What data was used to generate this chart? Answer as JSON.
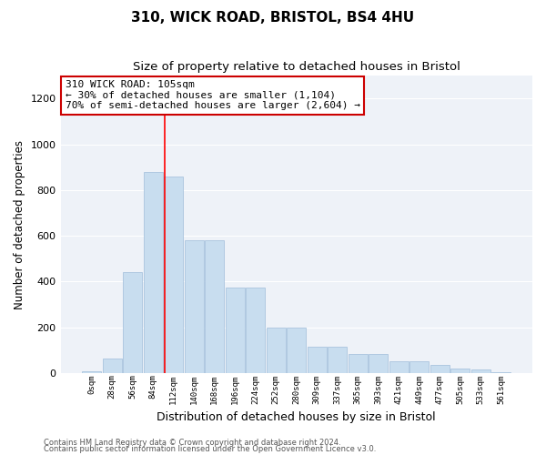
{
  "title": "310, WICK ROAD, BRISTOL, BS4 4HU",
  "subtitle": "Size of property relative to detached houses in Bristol",
  "xlabel": "Distribution of detached houses by size in Bristol",
  "ylabel": "Number of detached properties",
  "bar_color": "#c8ddef",
  "bar_edge_color": "#aac4de",
  "background_color": "#eef2f8",
  "grid_color": "#ffffff",
  "categories": [
    "0sqm",
    "28sqm",
    "56sqm",
    "84sqm",
    "112sqm",
    "140sqm",
    "168sqm",
    "196sqm",
    "224sqm",
    "252sqm",
    "280sqm",
    "309sqm",
    "337sqm",
    "365sqm",
    "393sqm",
    "421sqm",
    "449sqm",
    "477sqm",
    "505sqm",
    "533sqm",
    "561sqm"
  ],
  "bar_heights": [
    10,
    65,
    440,
    880,
    860,
    580,
    580,
    375,
    375,
    200,
    200,
    115,
    115,
    85,
    85,
    50,
    50,
    35,
    20,
    15,
    5
  ],
  "ylim": [
    0,
    1300
  ],
  "yticks": [
    0,
    200,
    400,
    600,
    800,
    1000,
    1200
  ],
  "red_line_x": 3.57,
  "annotation_text": "310 WICK ROAD: 105sqm\n← 30% of detached houses are smaller (1,104)\n70% of semi-detached houses are larger (2,604) →",
  "annotation_box_color": "white",
  "annotation_box_edge_color": "#cc0000",
  "footer_line1": "Contains HM Land Registry data © Crown copyright and database right 2024.",
  "footer_line2": "Contains public sector information licensed under the Open Government Licence v3.0."
}
